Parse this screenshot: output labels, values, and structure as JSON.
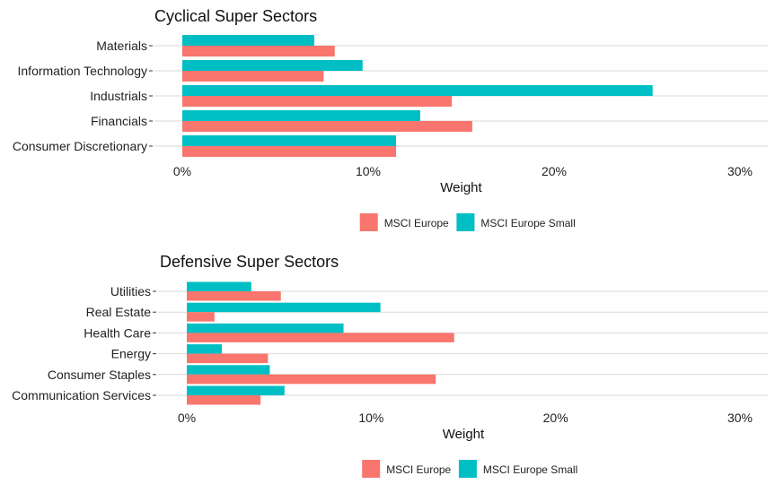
{
  "colors": {
    "msci_europe": "#F8766D",
    "msci_europe_small": "#00BFC4"
  },
  "chart_data": [
    {
      "type": "bar",
      "orientation": "horizontal",
      "title": "Cyclical Super Sectors",
      "xlabel": "Weight",
      "xlim": [
        0,
        30
      ],
      "xticks": [
        "0%",
        "10%",
        "20%",
        "30%"
      ],
      "categories": [
        "Materials",
        "Information Technology",
        "Industrials",
        "Financials",
        "Consumer Discretionary"
      ],
      "series": [
        {
          "name": "MSCI Europe Small",
          "values": [
            7.1,
            9.7,
            25.3,
            12.8,
            11.5
          ]
        },
        {
          "name": "MSCI Europe",
          "values": [
            8.2,
            7.6,
            14.5,
            15.6,
            11.5
          ]
        }
      ],
      "legend": {
        "position": "bottom",
        "items": [
          "MSCI Europe",
          "MSCI Europe Small"
        ]
      },
      "grid": true
    },
    {
      "type": "bar",
      "orientation": "horizontal",
      "title": "Defensive Super Sectors",
      "xlabel": "Weight",
      "xlim": [
        0,
        30
      ],
      "xticks": [
        "0%",
        "10%",
        "20%",
        "30%"
      ],
      "categories": [
        "Utilities",
        "Real Estate",
        "Health Care",
        "Energy",
        "Consumer Staples",
        "Communication Services"
      ],
      "series": [
        {
          "name": "MSCI Europe Small",
          "values": [
            3.5,
            10.5,
            8.5,
            1.9,
            4.5,
            5.3
          ]
        },
        {
          "name": "MSCI Europe",
          "values": [
            5.1,
            1.5,
            14.5,
            4.4,
            13.5,
            4.0
          ]
        }
      ],
      "legend": {
        "position": "bottom",
        "items": [
          "MSCI Europe",
          "MSCI Europe Small"
        ]
      },
      "grid": true
    }
  ]
}
